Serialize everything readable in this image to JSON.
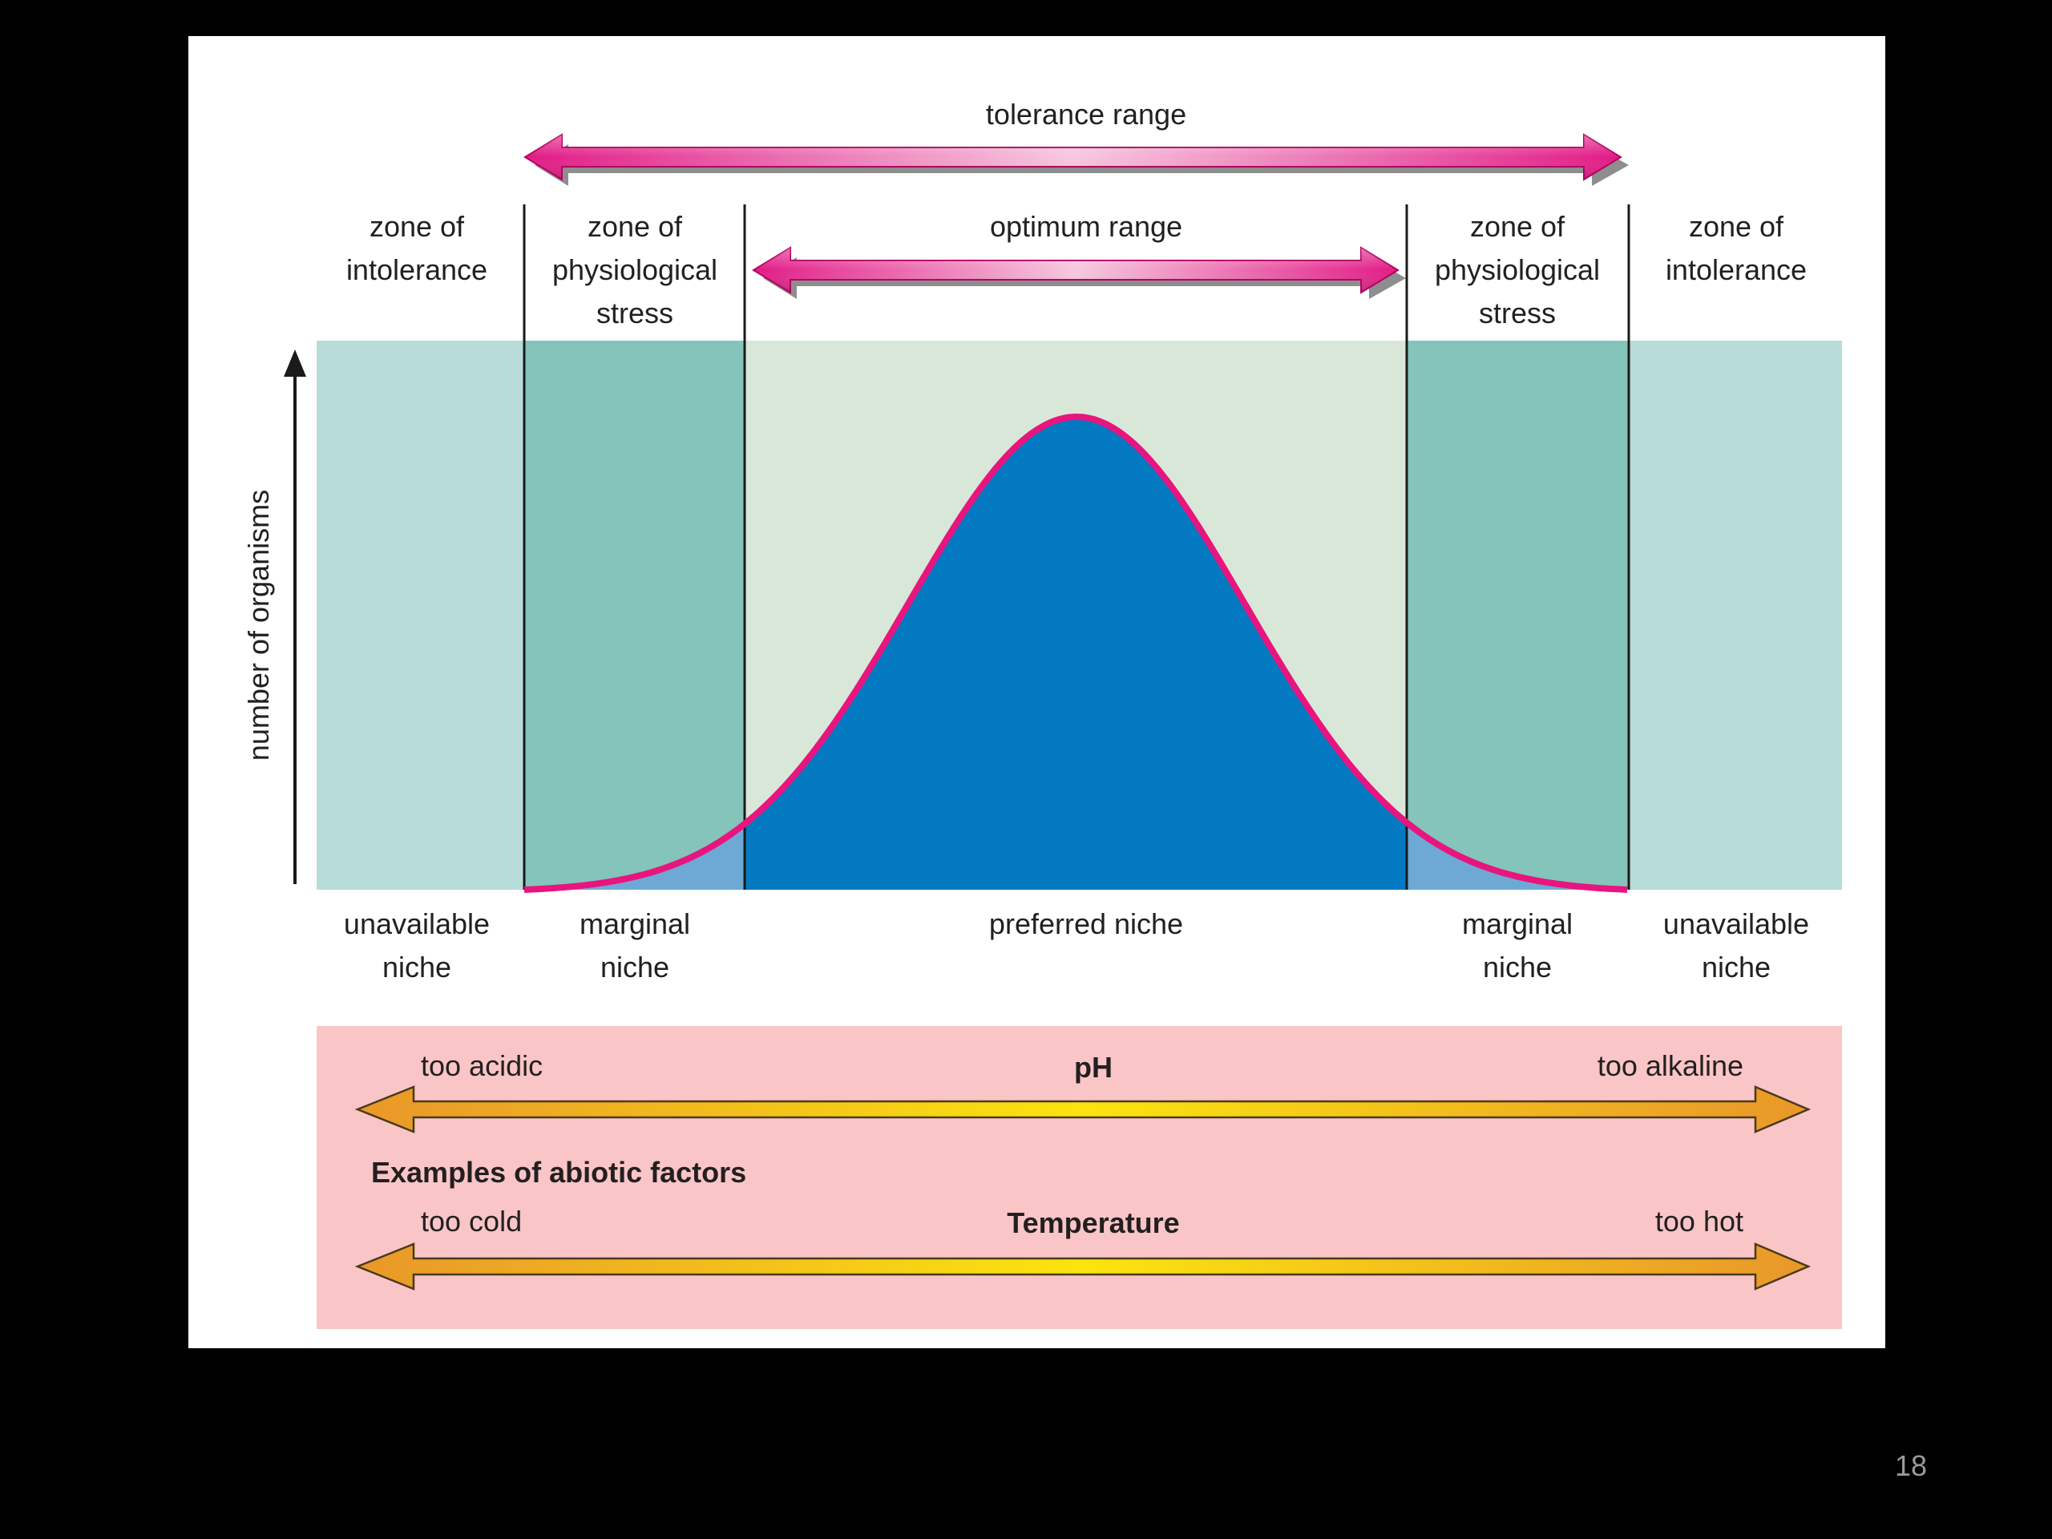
{
  "diagram": {
    "top_arrows": {
      "tolerance_range": "tolerance range",
      "optimum_range": "optimum range"
    },
    "zones": {
      "left_intolerance": "zone of\nintolerance",
      "left_stress": "zone of\nphysiological\nstress",
      "right_stress": "zone of\nphysiological\nstress",
      "right_intolerance": "zone of\nintolerance"
    },
    "y_axis_label": "number of organisms",
    "niches": {
      "left_unavailable": "unavailable\nniche",
      "left_marginal": "marginal\nniche",
      "preferred": "preferred niche",
      "right_marginal": "marginal\nniche",
      "right_unavailable": "unavailable\nniche"
    },
    "abiotic": {
      "heading": "Examples of abiotic factors",
      "ph": {
        "title": "pH",
        "low": "too acidic",
        "high": "too alkaline"
      },
      "temperature": {
        "title": "Temperature",
        "low": "too cold",
        "high": "too hot"
      }
    },
    "colors": {
      "intolerance_zone": "#b8dcd8",
      "stress_zone": "#84c4bb",
      "optimum_zone": "#d9e7d8",
      "curve_fill": "#0379c2",
      "curve_fill_marginal": "#6ea9d6",
      "curve_stroke": "#e8157f",
      "magenta_arrow": "#e21a86",
      "abiotic_panel": "#f9c5c6",
      "yellow_arrow": "#f6c715"
    }
  },
  "slide_number": "18"
}
